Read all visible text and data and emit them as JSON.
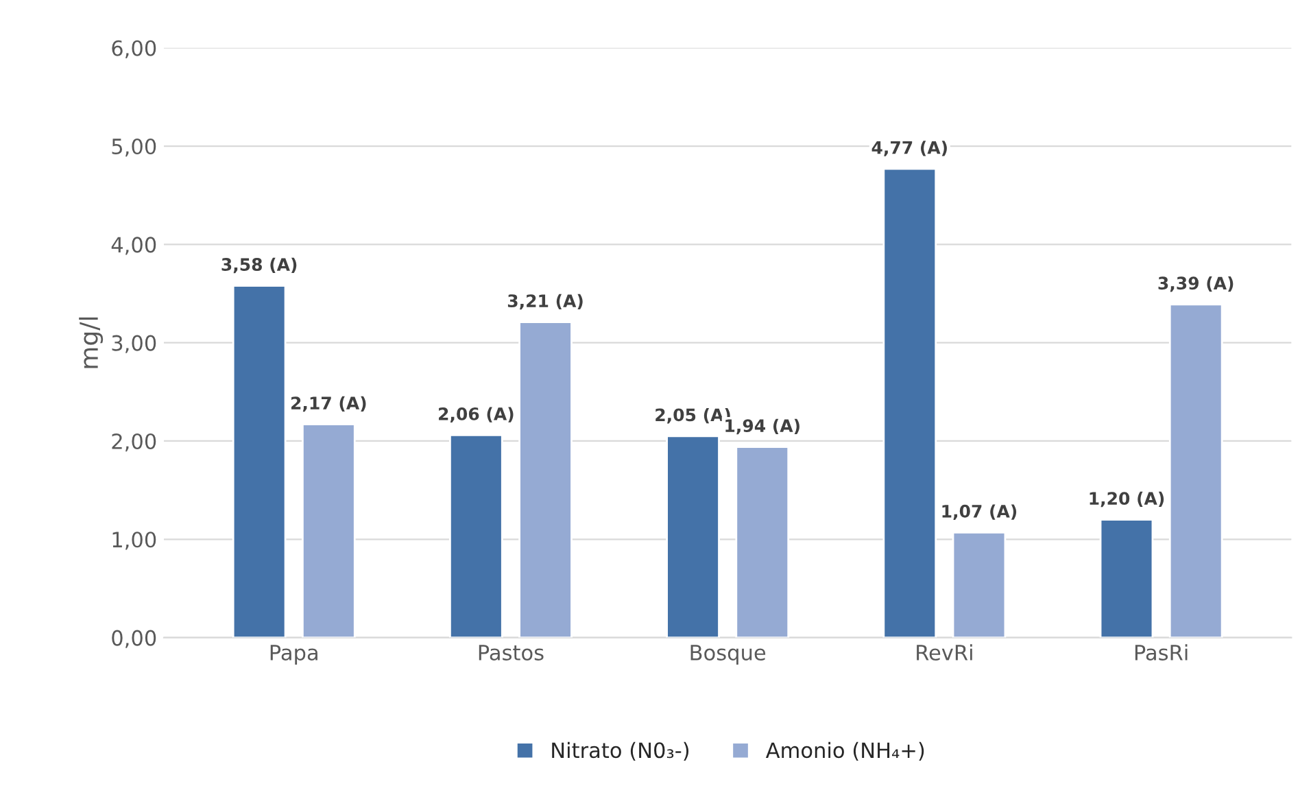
{
  "chart_data": {
    "type": "bar",
    "ylabel": "mg/l",
    "categories": [
      "Papa",
      "Pastos",
      "Bosque",
      "RevRi",
      "PasRi"
    ],
    "series": [
      {
        "name": "Nitrato (N0₃-)",
        "color": "#4472a8",
        "values": [
          3.58,
          2.06,
          2.05,
          4.77,
          1.2
        ],
        "value_labels": [
          "3,58 (A)",
          "2,06 (A)",
          "2,05 (A)",
          "4,77 (A)",
          "1,20 (A)"
        ]
      },
      {
        "name": "Amonio (NH₄+)",
        "color": "#95aad3",
        "values": [
          2.17,
          3.21,
          1.94,
          1.07,
          3.39
        ],
        "value_labels": [
          "2,17 (A)",
          "3,21 (A)",
          "1,94 (A)",
          "1,07 (A)",
          "3,39 (A)"
        ]
      }
    ],
    "ylim": [
      0,
      6
    ],
    "yticks": [
      {
        "value": 0,
        "label": "0,00"
      },
      {
        "value": 1,
        "label": "1,00"
      },
      {
        "value": 2,
        "label": "2,00"
      },
      {
        "value": 3,
        "label": "3,00"
      },
      {
        "value": 4,
        "label": "4,00"
      },
      {
        "value": 5,
        "label": "5,00"
      },
      {
        "value": 6,
        "label": "6,00"
      }
    ],
    "grid": "y",
    "legend": "bottom"
  }
}
